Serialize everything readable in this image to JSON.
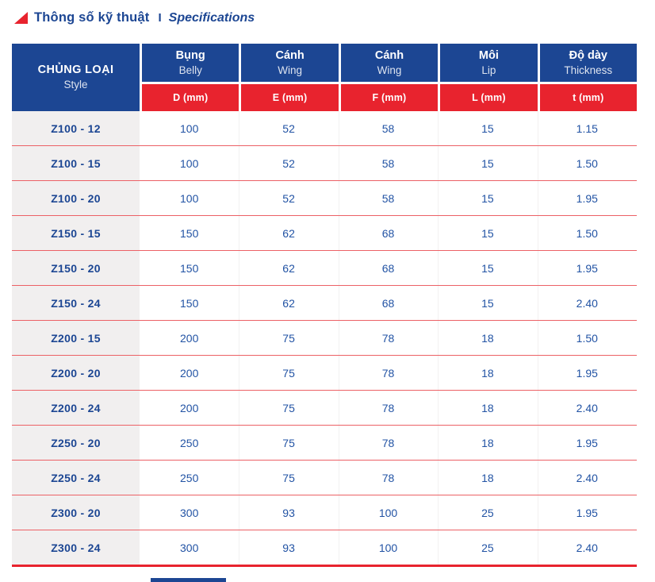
{
  "title": {
    "vi": "Thông số kỹ thuật",
    "separator": "I",
    "en": "Specifications"
  },
  "table": {
    "style_header": {
      "vi": "CHỦNG LOẠI",
      "en": "Style"
    },
    "columns": [
      {
        "vi": "Bụng",
        "en": "Belly",
        "unit": "D (mm)"
      },
      {
        "vi": "Cánh",
        "en": "Wing",
        "unit": "E (mm)"
      },
      {
        "vi": "Cánh",
        "en": "Wing",
        "unit": "F (mm)"
      },
      {
        "vi": "Môi",
        "en": "Lip",
        "unit": "L (mm)"
      },
      {
        "vi": "Độ dày",
        "en": "Thickness",
        "unit": "t (mm)"
      }
    ],
    "rows": [
      {
        "style": "Z100 - 12",
        "values": [
          "100",
          "52",
          "58",
          "15",
          "1.15"
        ]
      },
      {
        "style": "Z100 - 15",
        "values": [
          "100",
          "52",
          "58",
          "15",
          "1.50"
        ]
      },
      {
        "style": "Z100 - 20",
        "values": [
          "100",
          "52",
          "58",
          "15",
          "1.95"
        ]
      },
      {
        "style": "Z150 - 15",
        "values": [
          "150",
          "62",
          "68",
          "15",
          "1.50"
        ]
      },
      {
        "style": "Z150 - 20",
        "values": [
          "150",
          "62",
          "68",
          "15",
          "1.95"
        ]
      },
      {
        "style": "Z150 - 24",
        "values": [
          "150",
          "62",
          "68",
          "15",
          "2.40"
        ]
      },
      {
        "style": "Z200 - 15",
        "values": [
          "200",
          "75",
          "78",
          "18",
          "1.50"
        ]
      },
      {
        "style": "Z200 - 20",
        "values": [
          "200",
          "75",
          "78",
          "18",
          "1.95"
        ]
      },
      {
        "style": "Z200 - 24",
        "values": [
          "200",
          "75",
          "78",
          "18",
          "2.40"
        ]
      },
      {
        "style": "Z250 - 20",
        "values": [
          "250",
          "75",
          "78",
          "18",
          "1.95"
        ]
      },
      {
        "style": "Z250 - 24",
        "values": [
          "250",
          "75",
          "78",
          "18",
          "2.40"
        ]
      },
      {
        "style": "Z300 - 20",
        "values": [
          "300",
          "93",
          "100",
          "25",
          "1.95"
        ]
      },
      {
        "style": "Z300 - 24",
        "values": [
          "300",
          "93",
          "100",
          "25",
          "2.40"
        ]
      }
    ]
  },
  "colors": {
    "header_blue": "#1C4693",
    "accent_red": "#E8232E",
    "row_divider_red": "#EC6166",
    "label_column_bg": "#F1EFEF",
    "value_text_blue": "#2253A4"
  }
}
